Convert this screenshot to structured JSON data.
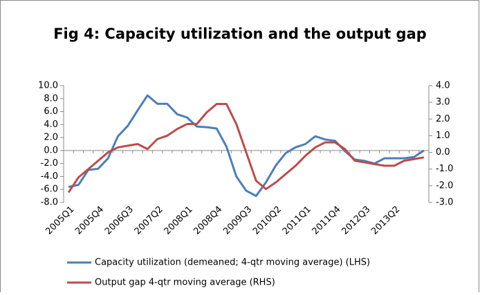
{
  "chart_data": {
    "type": "line",
    "title": "Fig 4: Capacity utilization and the output gap",
    "categories": [
      "2005Q1",
      null,
      null,
      "2005Q4",
      null,
      null,
      "2006Q3",
      null,
      null,
      "2007Q2",
      null,
      null,
      "2008Q1",
      null,
      null,
      "2008Q4",
      null,
      null,
      "2009Q3",
      null,
      null,
      "2010Q2",
      null,
      null,
      "2011Q1",
      null,
      null,
      "2011Q4",
      null,
      null,
      "2012Q3",
      null,
      null,
      "2013Q2",
      null,
      null,
      null
    ],
    "series": [
      {
        "name": "Capacity utilization (demeaned; 4-qtr moving average) (LHS)",
        "color": "#4a7ebb",
        "axis": "y",
        "values": [
          -5.6,
          -5.3,
          -3.0,
          -2.8,
          -1.2,
          2.2,
          3.8,
          6.2,
          8.5,
          7.2,
          7.2,
          5.6,
          5.1,
          3.7,
          3.6,
          3.4,
          0.6,
          -4.0,
          -6.2,
          -7.0,
          -4.9,
          -2.3,
          -0.4,
          0.5,
          1.0,
          2.2,
          1.7,
          1.5,
          -0.1,
          -1.4,
          -1.6,
          -2.0,
          -1.2,
          -1.2,
          -1.2,
          -1.0,
          0.0
        ]
      },
      {
        "name": "Output gap 4-qtr moving average (RHS)",
        "color": "#be4b48",
        "axis": "y2",
        "values": [
          -2.4,
          -1.5,
          -1.0,
          -0.5,
          0.0,
          0.3,
          0.4,
          0.5,
          0.2,
          0.8,
          1.0,
          1.4,
          1.7,
          1.7,
          2.4,
          2.9,
          2.9,
          1.7,
          0.0,
          -1.7,
          -2.2,
          -1.8,
          -1.3,
          -0.8,
          -0.2,
          0.3,
          0.6,
          0.6,
          0.2,
          -0.5,
          -0.6,
          -0.7,
          -0.8,
          -0.8,
          -0.5,
          -0.4,
          -0.3
        ]
      }
    ],
    "ylim": [
      -8,
      10
    ],
    "yticks": [
      {
        "value": -8,
        "label": "-8.0"
      },
      {
        "value": -6,
        "label": "-6.0"
      },
      {
        "value": -4,
        "label": "-4.0"
      },
      {
        "value": -2,
        "label": "-2.0"
      },
      {
        "value": 0,
        "label": "0.0"
      },
      {
        "value": 2,
        "label": "2.0"
      },
      {
        "value": 4,
        "label": "4.0"
      },
      {
        "value": 6,
        "label": "6.0"
      },
      {
        "value": 8,
        "label": "8.0"
      },
      {
        "value": 10,
        "label": "10.0"
      }
    ],
    "y2lim": [
      -3,
      4
    ],
    "y2ticks": [
      {
        "value": -3,
        "label": "-3.0"
      },
      {
        "value": -2,
        "label": "-2.0"
      },
      {
        "value": -1,
        "label": "-1.0"
      },
      {
        "value": 0,
        "label": "0.0"
      },
      {
        "value": 1,
        "label": "1.0"
      },
      {
        "value": 2,
        "label": "2.0"
      },
      {
        "value": 3,
        "label": "3.0"
      },
      {
        "value": 4,
        "label": "4.0"
      }
    ],
    "grid": false,
    "legend": "bottom"
  }
}
